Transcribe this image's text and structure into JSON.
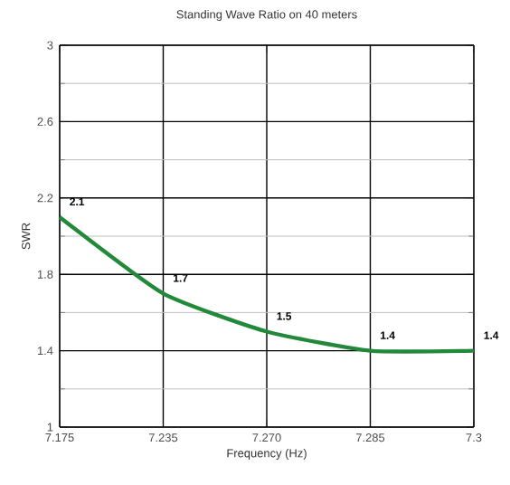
{
  "chart_data": {
    "type": "line",
    "title": "Standing Wave Ratio on 40 meters",
    "xlabel": "Frequency (Hz)",
    "ylabel": "SWR",
    "categories": [
      "7.175",
      "7.235",
      "7.270",
      "7.285",
      "7.3"
    ],
    "values": [
      2.1,
      1.7,
      1.5,
      1.4,
      1.4
    ],
    "color": "#22883a",
    "ylim": [
      1,
      3
    ],
    "yticks": [
      1,
      1.4,
      1.8,
      2.2,
      2.6,
      3
    ],
    "grid": true,
    "data_labels": true,
    "marker": "none",
    "line_style": "solid"
  }
}
